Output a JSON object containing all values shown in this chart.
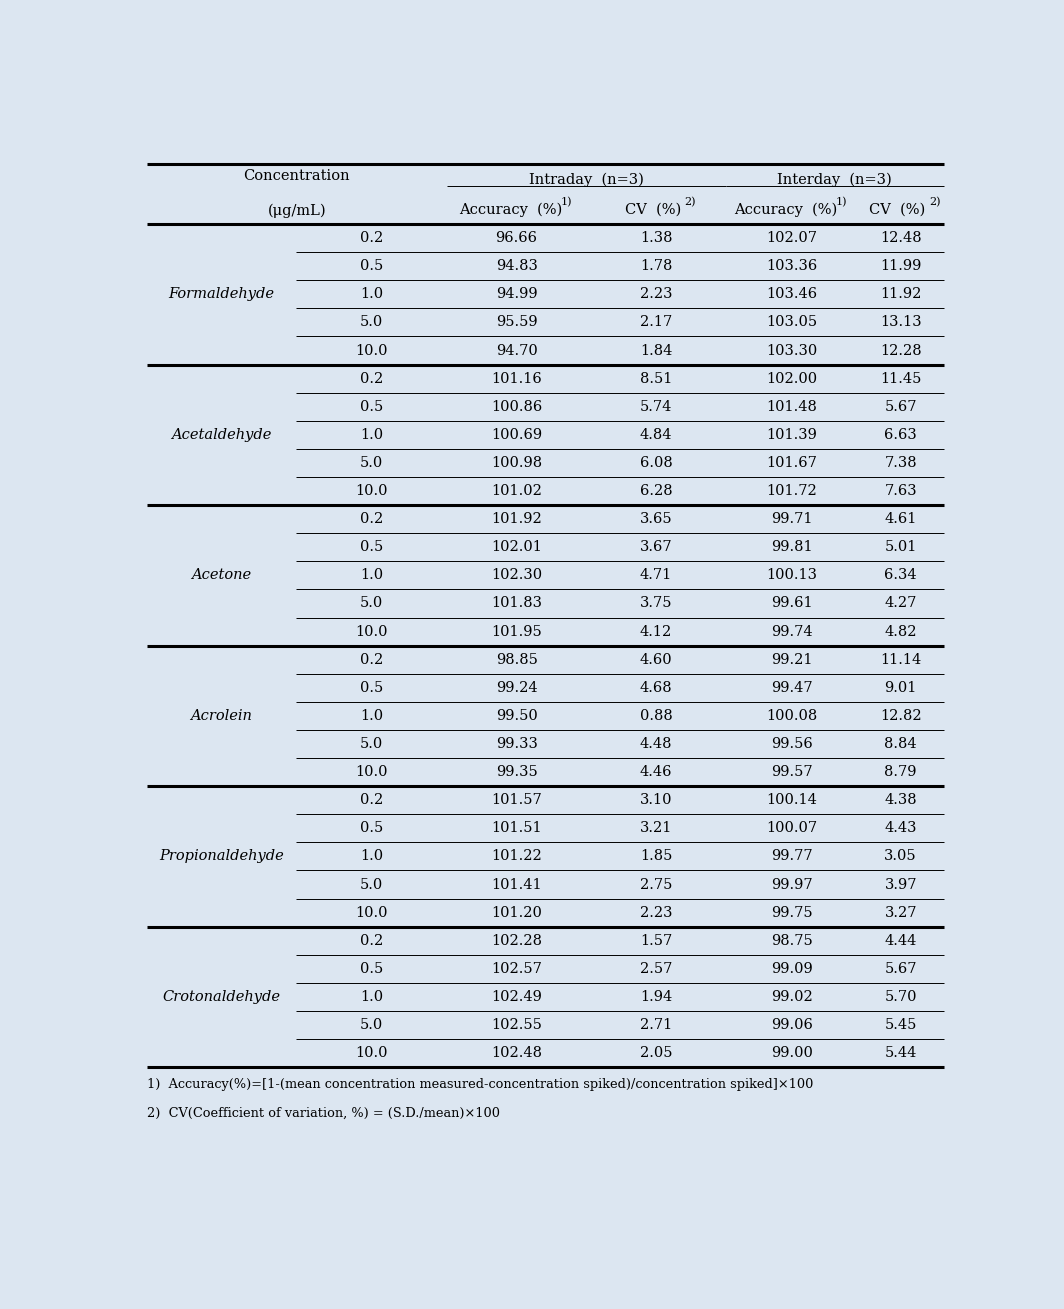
{
  "background_color": "#dce6f1",
  "compounds": [
    "Formaldehyde",
    "Acetaldehyde",
    "Acetone",
    "Acrolein",
    "Propionaldehyde",
    "Crotonaldehyde"
  ],
  "concentrations": [
    "0.2",
    "0.5",
    "1.0",
    "5.0",
    "10.0"
  ],
  "data": {
    "Formaldehyde": {
      "intraday_accuracy": [
        "96.66",
        "94.83",
        "94.99",
        "95.59",
        "94.70"
      ],
      "intraday_cv": [
        "1.38",
        "1.78",
        "2.23",
        "2.17",
        "1.84"
      ],
      "interday_accuracy": [
        "102.07",
        "103.36",
        "103.46",
        "103.05",
        "103.30"
      ],
      "interday_cv": [
        "12.48",
        "11.99",
        "11.92",
        "13.13",
        "12.28"
      ]
    },
    "Acetaldehyde": {
      "intraday_accuracy": [
        "101.16",
        "100.86",
        "100.69",
        "100.98",
        "101.02"
      ],
      "intraday_cv": [
        "8.51",
        "5.74",
        "4.84",
        "6.08",
        "6.28"
      ],
      "interday_accuracy": [
        "102.00",
        "101.48",
        "101.39",
        "101.67",
        "101.72"
      ],
      "interday_cv": [
        "11.45",
        "5.67",
        "6.63",
        "7.38",
        "7.63"
      ]
    },
    "Acetone": {
      "intraday_accuracy": [
        "101.92",
        "102.01",
        "102.30",
        "101.83",
        "101.95"
      ],
      "intraday_cv": [
        "3.65",
        "3.67",
        "4.71",
        "3.75",
        "4.12"
      ],
      "interday_accuracy": [
        "99.71",
        "99.81",
        "100.13",
        "99.61",
        "99.74"
      ],
      "interday_cv": [
        "4.61",
        "5.01",
        "6.34",
        "4.27",
        "4.82"
      ]
    },
    "Acrolein": {
      "intraday_accuracy": [
        "98.85",
        "99.24",
        "99.50",
        "99.33",
        "99.35"
      ],
      "intraday_cv": [
        "4.60",
        "4.68",
        "0.88",
        "4.48",
        "4.46"
      ],
      "interday_accuracy": [
        "99.21",
        "99.47",
        "100.08",
        "99.56",
        "99.57"
      ],
      "interday_cv": [
        "11.14",
        "9.01",
        "12.82",
        "8.84",
        "8.79"
      ]
    },
    "Propionaldehyde": {
      "intraday_accuracy": [
        "101.57",
        "101.51",
        "101.22",
        "101.41",
        "101.20"
      ],
      "intraday_cv": [
        "3.10",
        "3.21",
        "1.85",
        "2.75",
        "2.23"
      ],
      "interday_accuracy": [
        "100.14",
        "100.07",
        "99.77",
        "99.97",
        "99.75"
      ],
      "interday_cv": [
        "4.38",
        "4.43",
        "3.05",
        "3.97",
        "3.27"
      ]
    },
    "Crotonaldehyde": {
      "intraday_accuracy": [
        "102.28",
        "102.57",
        "102.49",
        "102.55",
        "102.48"
      ],
      "intraday_cv": [
        "1.57",
        "2.57",
        "1.94",
        "2.71",
        "2.05"
      ],
      "interday_accuracy": [
        "98.75",
        "99.09",
        "99.02",
        "99.06",
        "99.00"
      ],
      "interday_cv": [
        "4.44",
        "5.67",
        "5.70",
        "5.45",
        "5.44"
      ]
    }
  },
  "footnote1": "1)  Accuracy(%)=[1-(mean concentration measured-concentration spiked)/concentration spiked]×100",
  "footnote2": "2)  CV(Coefficient of variation, %) = (S.D./mean)×100",
  "col_header1": "Concentration",
  "col_header2": "(μg/mL)",
  "intraday_label": "Intraday  (n=3)",
  "interday_label": "Interday  (n=3)",
  "acc_label": "Accuracy  (%)",
  "cv_label": "CV  (%)",
  "sup1": "1)",
  "sup2": "2)"
}
